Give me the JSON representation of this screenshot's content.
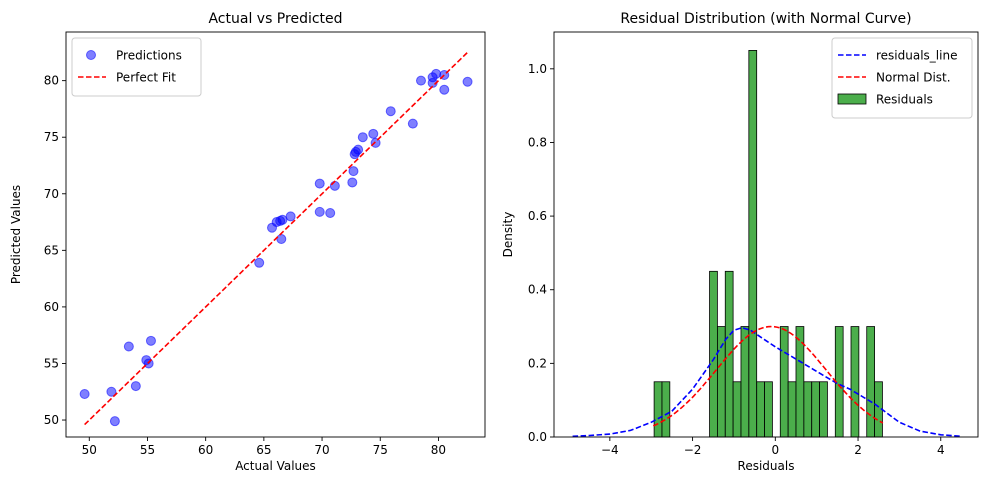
{
  "chart_data": [
    {
      "type": "scatter",
      "title": "Actual vs Predicted",
      "xlabel": "Actual Values",
      "ylabel": "Predicted Values",
      "xlim": [
        48.0,
        84.0
      ],
      "ylim": [
        48.5,
        84.3
      ],
      "xticks": [
        50,
        55,
        60,
        65,
        70,
        75,
        80
      ],
      "yticks": [
        50,
        55,
        60,
        65,
        70,
        75,
        80
      ],
      "legend_position": "top-left",
      "series": [
        {
          "name": "Predictions",
          "kind": "points",
          "color": "#0000ff",
          "points": [
            [
              49.6,
              52.3
            ],
            [
              51.9,
              52.5
            ],
            [
              52.2,
              49.9
            ],
            [
              53.4,
              56.5
            ],
            [
              54.0,
              53.0
            ],
            [
              54.9,
              55.3
            ],
            [
              55.1,
              55.0
            ],
            [
              55.3,
              57.0
            ],
            [
              64.6,
              63.9
            ],
            [
              65.7,
              67.0
            ],
            [
              66.1,
              67.5
            ],
            [
              66.4,
              67.6
            ],
            [
              66.5,
              66.0
            ],
            [
              66.6,
              67.7
            ],
            [
              67.3,
              68.0
            ],
            [
              69.8,
              70.9
            ],
            [
              69.8,
              68.4
            ],
            [
              70.7,
              68.3
            ],
            [
              71.1,
              70.7
            ],
            [
              72.6,
              71.0
            ],
            [
              72.7,
              72.0
            ],
            [
              72.8,
              73.5
            ],
            [
              72.9,
              73.7
            ],
            [
              73.1,
              73.9
            ],
            [
              73.5,
              75.0
            ],
            [
              74.4,
              75.3
            ],
            [
              74.6,
              74.5
            ],
            [
              75.9,
              77.3
            ],
            [
              77.8,
              76.2
            ],
            [
              78.5,
              80.0
            ],
            [
              79.5,
              79.8
            ],
            [
              79.5,
              80.3
            ],
            [
              79.8,
              80.6
            ],
            [
              80.5,
              80.5
            ],
            [
              80.5,
              79.2
            ],
            [
              82.5,
              79.9
            ]
          ]
        },
        {
          "name": "Perfect Fit",
          "kind": "line",
          "color": "#ff0000",
          "dash": "dashed",
          "points": [
            [
              49.6,
              49.6
            ],
            [
              82.5,
              82.5
            ]
          ]
        }
      ]
    },
    {
      "type": "bar",
      "title": "Residual Distribution (with Normal Curve)",
      "xlabel": "Residuals",
      "ylabel": "Density",
      "xlim": [
        -5.35,
        4.9
      ],
      "ylim": [
        0.0,
        1.1
      ],
      "xticks": [
        -4,
        -2,
        0,
        2,
        4
      ],
      "yticks": [
        0.0,
        0.2,
        0.4,
        0.6,
        0.8,
        1.0
      ],
      "legend_position": "top-right",
      "histogram": {
        "name": "Residuals",
        "color": "#2ca02c",
        "bin_width": 0.19,
        "bins": [
          [
            -2.93,
            0.15
          ],
          [
            -2.74,
            0.15
          ],
          [
            -1.59,
            0.45
          ],
          [
            -1.4,
            0.3
          ],
          [
            -1.21,
            0.45
          ],
          [
            -1.02,
            0.15
          ],
          [
            -0.83,
            0.3
          ],
          [
            -0.64,
            1.05
          ],
          [
            -0.45,
            0.15
          ],
          [
            -0.26,
            0.15
          ],
          [
            0.12,
            0.3
          ],
          [
            0.31,
            0.15
          ],
          [
            0.5,
            0.3
          ],
          [
            0.69,
            0.15
          ],
          [
            0.88,
            0.15
          ],
          [
            1.07,
            0.15
          ],
          [
            1.45,
            0.3
          ],
          [
            1.83,
            0.3
          ],
          [
            2.21,
            0.3
          ],
          [
            2.4,
            0.15
          ]
        ]
      },
      "series": [
        {
          "name": "residuals_line",
          "kind": "line",
          "color": "#0000ff",
          "dash": "dashed",
          "points": [
            [
              -4.9,
              0.002
            ],
            [
              -4.5,
              0.004
            ],
            [
              -4.0,
              0.008
            ],
            [
              -3.5,
              0.018
            ],
            [
              -3.0,
              0.04
            ],
            [
              -2.5,
              0.07
            ],
            [
              -2.0,
              0.13
            ],
            [
              -1.5,
              0.21
            ],
            [
              -1.2,
              0.265
            ],
            [
              -1.0,
              0.29
            ],
            [
              -0.8,
              0.297
            ],
            [
              -0.6,
              0.29
            ],
            [
              -0.4,
              0.275
            ],
            [
              -0.2,
              0.26
            ],
            [
              0.0,
              0.245
            ],
            [
              0.3,
              0.225
            ],
            [
              0.6,
              0.205
            ],
            [
              0.9,
              0.185
            ],
            [
              1.2,
              0.165
            ],
            [
              1.5,
              0.145
            ],
            [
              1.8,
              0.13
            ],
            [
              2.1,
              0.11
            ],
            [
              2.4,
              0.09
            ],
            [
              2.7,
              0.065
            ],
            [
              3.0,
              0.04
            ],
            [
              3.5,
              0.016
            ],
            [
              4.0,
              0.006
            ],
            [
              4.5,
              0.002
            ]
          ]
        },
        {
          "name": "Normal Dist.",
          "kind": "line",
          "color": "#ff0000",
          "dash": "dashed",
          "mean": -0.1,
          "std": 1.33,
          "range": [
            -2.95,
            2.6
          ]
        }
      ]
    }
  ]
}
